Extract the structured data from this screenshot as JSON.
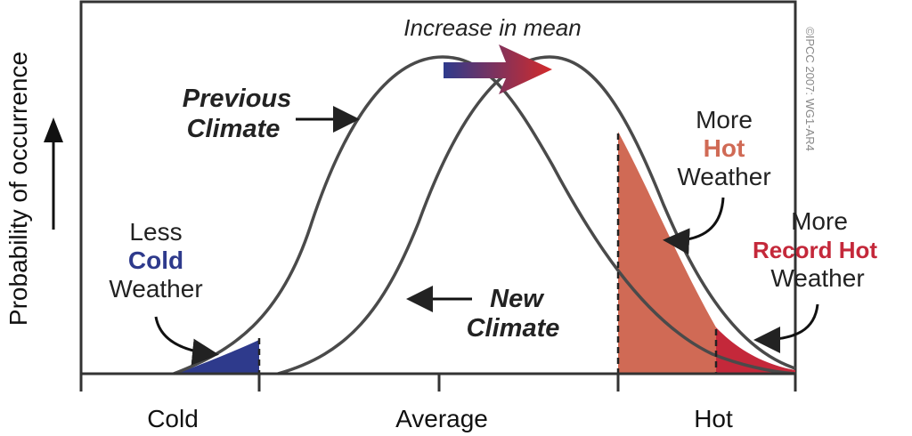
{
  "axis": {
    "y_label": "Probability of occurrence",
    "x_ticks": [
      "Cold",
      "Average",
      "Hot"
    ]
  },
  "annotations": {
    "increase_in_mean": "Increase in mean",
    "previous_climate": [
      "Previous",
      "Climate"
    ],
    "new_climate": [
      "New",
      "Climate"
    ],
    "less_cold": {
      "line1": "Less",
      "line2": "Cold",
      "line3": "Weather"
    },
    "more_hot": {
      "line1": "More",
      "line2": "Hot",
      "line3": "Weather"
    },
    "more_record_hot": {
      "line1": "More",
      "line2": "Record Hot",
      "line3": "Weather"
    },
    "copyright": "©IPCC 2007: WG1-AR4"
  },
  "colors": {
    "curve": "#4a4a4a",
    "cold_fill": "#2e3a8c",
    "hot_fill": "#d06a55",
    "record_hot_fill": "#c4283a",
    "cold_text": "#2e3a8c",
    "hot_text": "#d06a55",
    "record_hot_text": "#c4283a",
    "arrow_start": "#2e3a8c",
    "arrow_end": "#d42a2a"
  }
}
